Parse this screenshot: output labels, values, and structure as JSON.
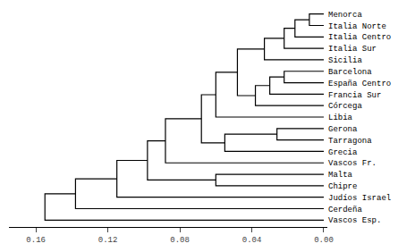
{
  "chart_data": {
    "type": "dendrogram",
    "categories": [
      "Menorca",
      "Italia Norte",
      "Italia Centro",
      "Italia Sur",
      "Sicilia",
      "Barcelona",
      "España Centro",
      "Francia Sur",
      "Córcega",
      "Libia",
      "Gerona",
      "Tarragona",
      "Grecia",
      "Vascos Fr.",
      "Malta",
      "Chipre",
      "Judíos Israel",
      "Cerdeña",
      "Vascos Esp."
    ],
    "merges": [
      {
        "left": [
          0
        ],
        "right": [
          1
        ],
        "dist": 0.008
      },
      {
        "left": [
          0,
          1
        ],
        "right": [
          2
        ],
        "dist": 0.016
      },
      {
        "left": [
          3
        ],
        "right": [
          0,
          1,
          2
        ],
        "dist": 0.022
      },
      {
        "left": [
          4
        ],
        "right": [
          0,
          1,
          2,
          3
        ],
        "dist": 0.033
      },
      {
        "left": [
          5
        ],
        "right": [
          6
        ],
        "dist": 0.022
      },
      {
        "left": [
          7
        ],
        "right": [
          5,
          6
        ],
        "dist": 0.03
      },
      {
        "left": [
          8
        ],
        "right": [
          5,
          6,
          7
        ],
        "dist": 0.038
      },
      {
        "left": [
          0,
          1,
          2,
          3,
          4
        ],
        "right": [
          5,
          6,
          7,
          8
        ],
        "dist": 0.048
      },
      {
        "left": [
          9
        ],
        "right": [
          0,
          1,
          2,
          3,
          4,
          5,
          6,
          7,
          8
        ],
        "dist": 0.06
      },
      {
        "left": [
          10
        ],
        "right": [
          11
        ],
        "dist": 0.026
      },
      {
        "left": [
          12
        ],
        "right": [
          10,
          11
        ],
        "dist": 0.055
      },
      {
        "left": [
          0,
          1,
          2,
          3,
          4,
          5,
          6,
          7,
          8,
          9
        ],
        "right": [
          10,
          11,
          12
        ],
        "dist": 0.068
      },
      {
        "left": [
          13
        ],
        "right": [
          0,
          1,
          2,
          3,
          4,
          5,
          6,
          7,
          8,
          9,
          10,
          11,
          12
        ],
        "dist": 0.088
      },
      {
        "left": [
          14
        ],
        "right": [
          15
        ],
        "dist": 0.06
      },
      {
        "left": [
          0,
          1,
          2,
          3,
          4,
          5,
          6,
          7,
          8,
          9,
          10,
          11,
          12,
          13
        ],
        "right": [
          14,
          15
        ],
        "dist": 0.098
      },
      {
        "left": [
          16
        ],
        "right": [
          0,
          1,
          2,
          3,
          4,
          5,
          6,
          7,
          8,
          9,
          10,
          11,
          12,
          13,
          14,
          15
        ],
        "dist": 0.115
      },
      {
        "left": [
          17
        ],
        "right": [
          0,
          1,
          2,
          3,
          4,
          5,
          6,
          7,
          8,
          9,
          10,
          11,
          12,
          13,
          14,
          15,
          16
        ],
        "dist": 0.138
      },
      {
        "left": [
          18
        ],
        "right": [
          0,
          1,
          2,
          3,
          4,
          5,
          6,
          7,
          8,
          9,
          10,
          11,
          12,
          13,
          14,
          15,
          16,
          17
        ],
        "dist": 0.155
      }
    ],
    "xlim": [
      0.175,
      -0.002
    ],
    "xticks": [
      0.16,
      0.12,
      0.08,
      0.04,
      {
        "value": 0,
        "label": "0.00"
      }
    ],
    "color": "#000000",
    "grid": false
  }
}
